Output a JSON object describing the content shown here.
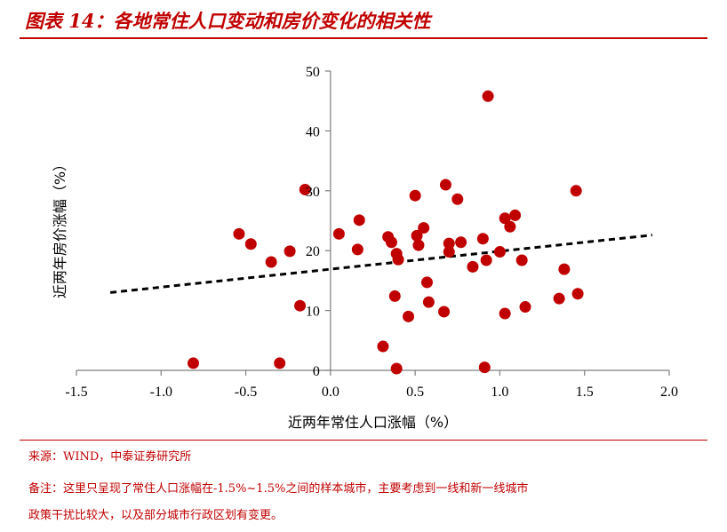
{
  "figure": {
    "title": "图表 14：各地常住人口变动和房价变化的相关性",
    "source": "来源：WIND，中泰证券研究所",
    "note_line1": "备注：这里只呈现了常住人口涨幅在-1.5%~1.5%之间的样本城市，主要考虑到一线和新一线城市",
    "note_line2": "政策干扰比较大，以及部分城市行政区划有变更。"
  },
  "colors": {
    "accent": "#c00000",
    "point": "#c00000",
    "trend": "#000000",
    "axis": "#7f7f7f"
  },
  "chart_data": {
    "type": "scatter",
    "xlabel": "近两年常住人口涨幅（%）",
    "ylabel": "近两年房价涨幅（%）",
    "xlim": [
      -1.5,
      2.0
    ],
    "ylim": [
      0,
      50
    ],
    "x_ticks": [
      "-1.5",
      "-1.0",
      "-0.5",
      "0.0",
      "0.5",
      "1.0",
      "1.5",
      "2.0"
    ],
    "y_ticks": [
      "0",
      "10",
      "20",
      "30",
      "40",
      "50"
    ],
    "grid": false,
    "legend": "none",
    "points": [
      {
        "x": 0.93,
        "y": 45.8
      },
      {
        "x": -0.15,
        "y": 30.2
      },
      {
        "x": 0.5,
        "y": 29.2
      },
      {
        "x": 0.68,
        "y": 31.0
      },
      {
        "x": 0.75,
        "y": 28.6
      },
      {
        "x": 1.45,
        "y": 30.0
      },
      {
        "x": -0.54,
        "y": 22.8
      },
      {
        "x": -0.47,
        "y": 21.1
      },
      {
        "x": -0.35,
        "y": 18.1
      },
      {
        "x": -0.24,
        "y": 19.9
      },
      {
        "x": -0.18,
        "y": 10.8
      },
      {
        "x": 0.05,
        "y": 22.8
      },
      {
        "x": 0.17,
        "y": 25.1
      },
      {
        "x": 0.16,
        "y": 20.2
      },
      {
        "x": 0.34,
        "y": 22.3
      },
      {
        "x": 0.36,
        "y": 21.4
      },
      {
        "x": 0.38,
        "y": 12.4
      },
      {
        "x": 0.39,
        "y": 19.5
      },
      {
        "x": 0.4,
        "y": 18.5
      },
      {
        "x": 0.51,
        "y": 22.5
      },
      {
        "x": 0.52,
        "y": 20.9
      },
      {
        "x": 0.55,
        "y": 23.8
      },
      {
        "x": 0.57,
        "y": 14.7
      },
      {
        "x": 0.58,
        "y": 11.4
      },
      {
        "x": 0.46,
        "y": 9.0
      },
      {
        "x": 0.7,
        "y": 21.2
      },
      {
        "x": 0.7,
        "y": 19.8
      },
      {
        "x": 0.67,
        "y": 9.8
      },
      {
        "x": 0.77,
        "y": 21.4
      },
      {
        "x": 0.84,
        "y": 17.3
      },
      {
        "x": 0.9,
        "y": 22.0
      },
      {
        "x": 0.92,
        "y": 18.4
      },
      {
        "x": 1.0,
        "y": 19.8
      },
      {
        "x": 1.03,
        "y": 25.4
      },
      {
        "x": 1.06,
        "y": 24.0
      },
      {
        "x": 1.09,
        "y": 25.9
      },
      {
        "x": 1.13,
        "y": 18.4
      },
      {
        "x": 1.15,
        "y": 10.6
      },
      {
        "x": 1.03,
        "y": 9.5
      },
      {
        "x": 1.35,
        "y": 12.0
      },
      {
        "x": 1.38,
        "y": 16.9
      },
      {
        "x": 1.46,
        "y": 12.8
      },
      {
        "x": -0.81,
        "y": 1.2
      },
      {
        "x": -0.3,
        "y": 1.2
      },
      {
        "x": 0.31,
        "y": 4.0
      },
      {
        "x": 0.39,
        "y": 0.3
      },
      {
        "x": 0.91,
        "y": 0.5
      }
    ],
    "trendline": {
      "x": [
        -1.3,
        1.9
      ],
      "y": [
        13.0,
        22.6
      ],
      "style": "dashed"
    }
  }
}
